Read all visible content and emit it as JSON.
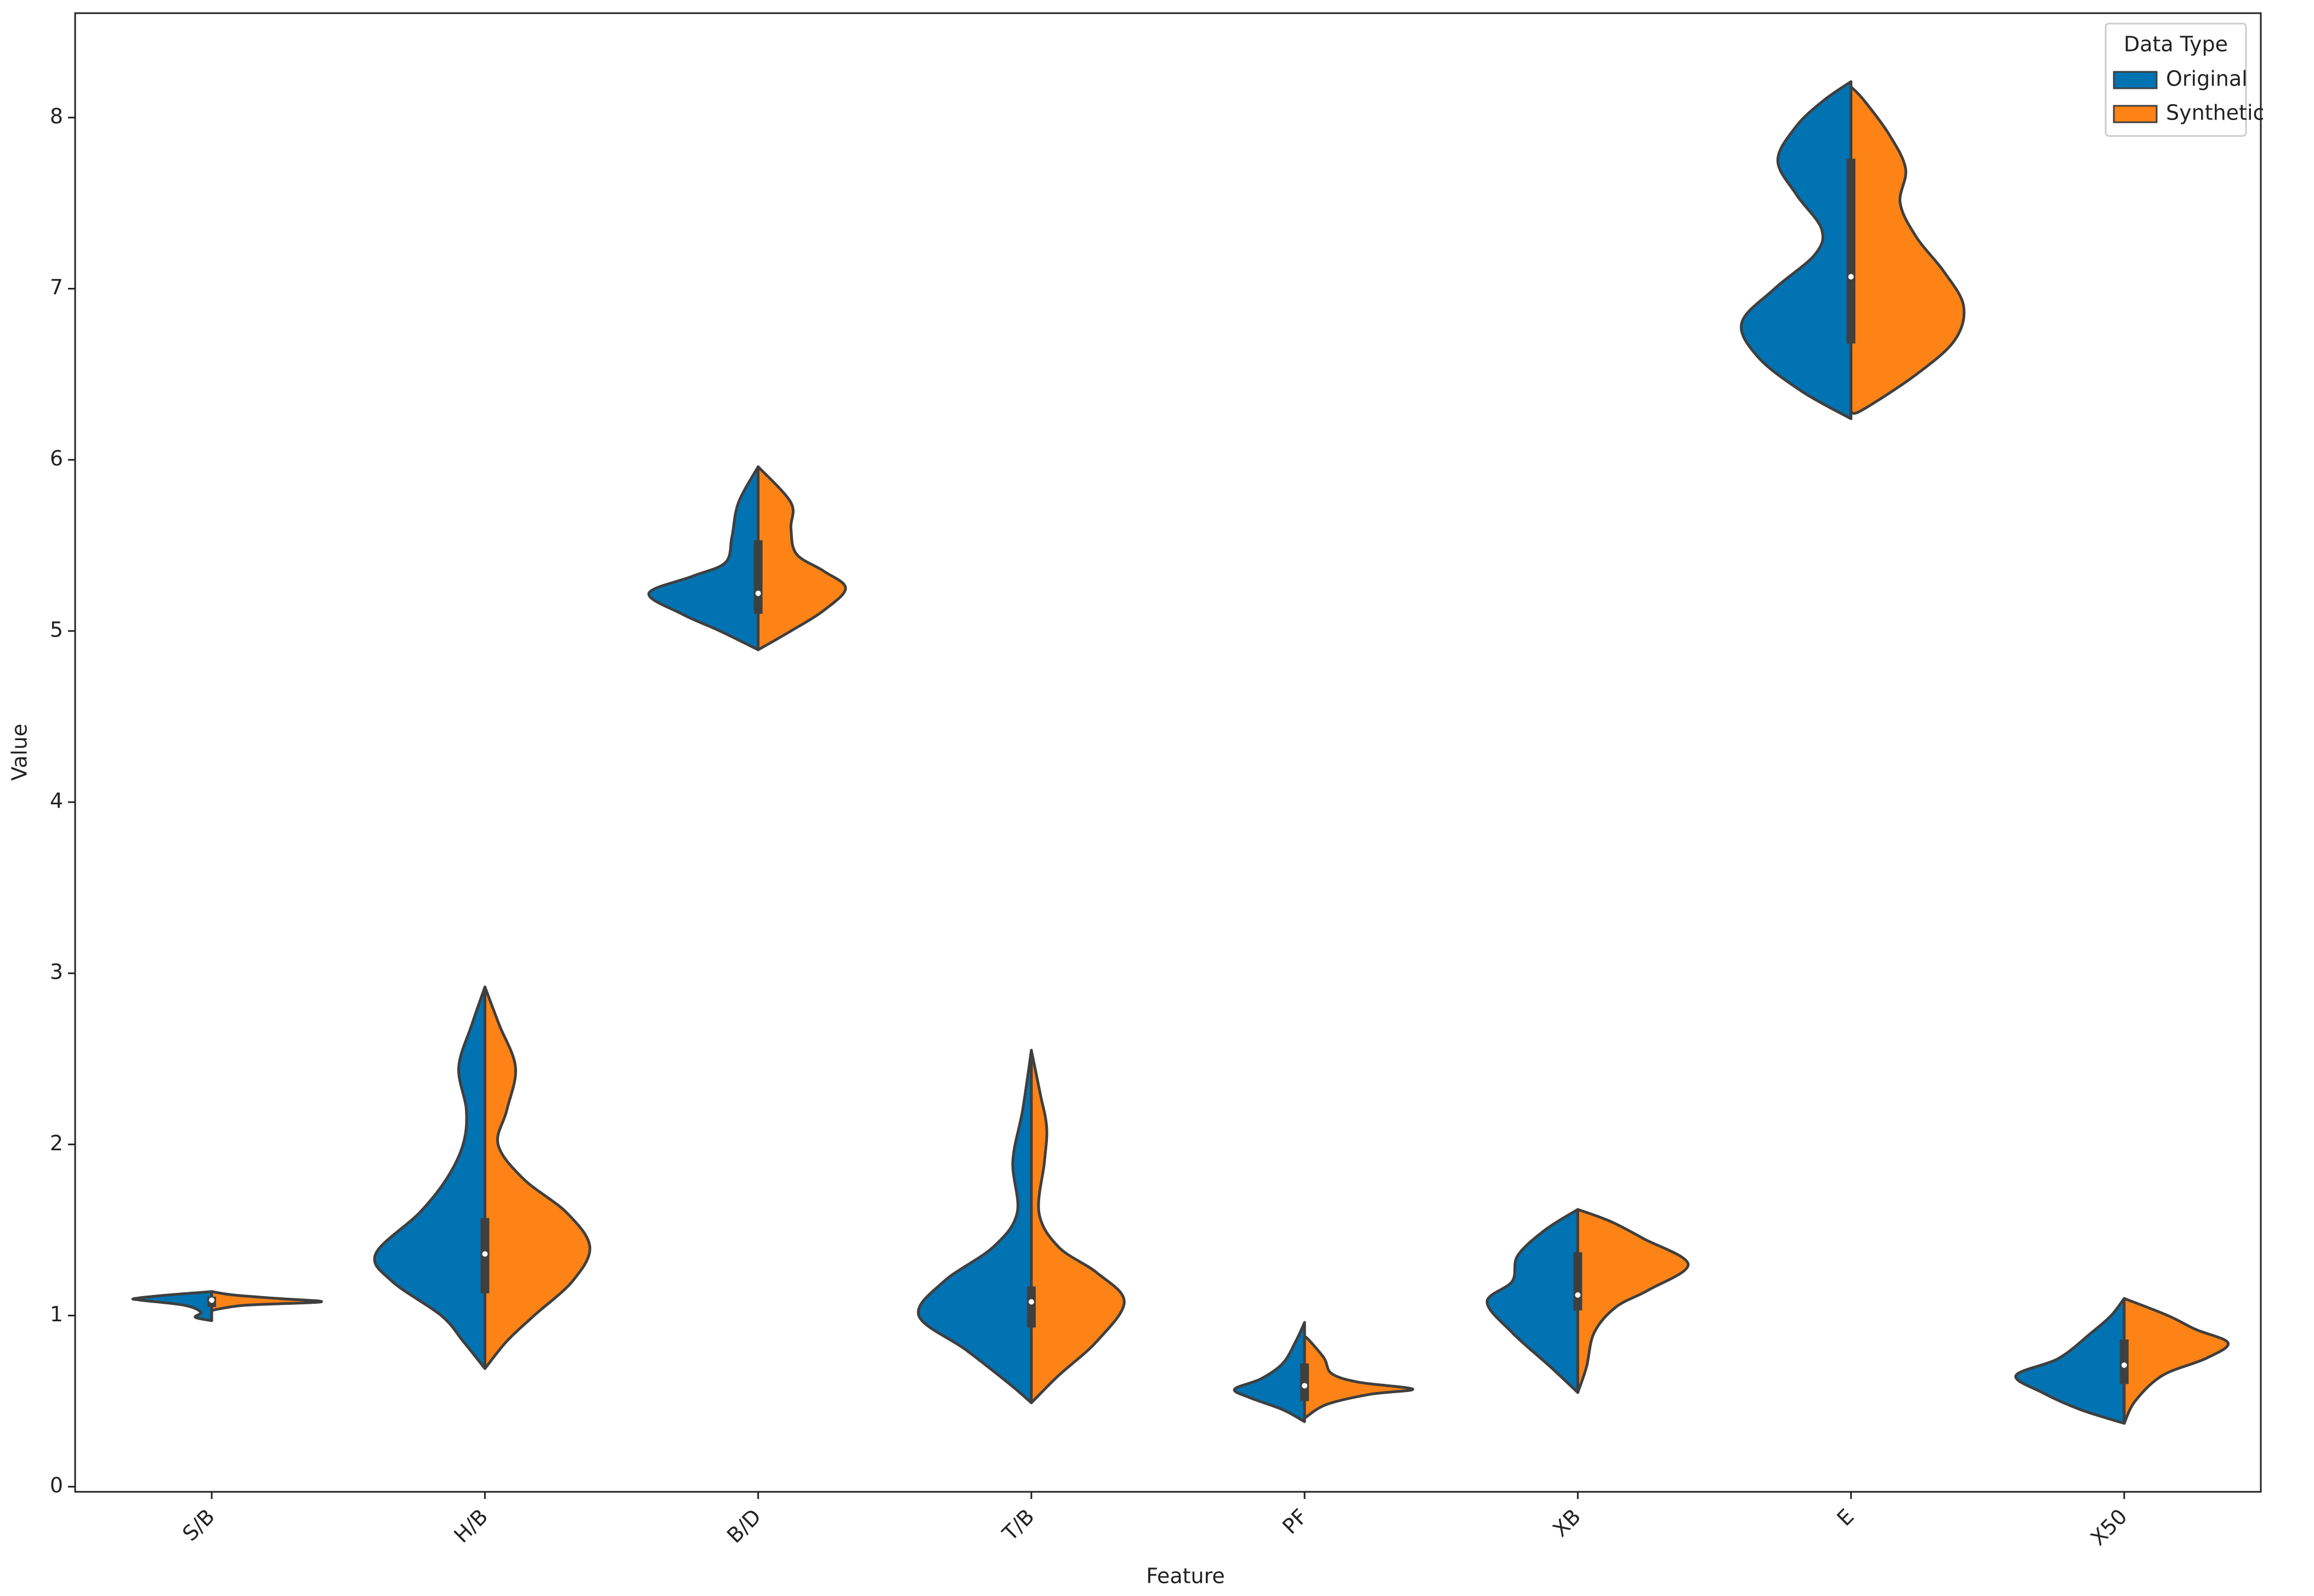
{
  "chart_data": {
    "type": "violin",
    "xlabel": "Feature",
    "ylabel": "Value",
    "categories": [
      "S/B",
      "H/B",
      "B/D",
      "T/B",
      "PF",
      "XB",
      "E",
      "X50"
    ],
    "ylim": [
      -0.03,
      8.61
    ],
    "yticks": [
      0,
      1,
      2,
      3,
      4,
      5,
      6,
      7,
      8
    ],
    "legend": {
      "title": "Data Type",
      "position": "upper right"
    },
    "series": [
      {
        "name": "Original",
        "color": "#0173b2",
        "side": "left",
        "violins": [
          {
            "y": [
              0.97,
              0.99,
              1.02,
              1.06,
              1.09,
              1.1,
              1.12,
              1.14
            ],
            "width": [
              0,
              0.15,
              0.1,
              0.25,
              0.65,
              0.7,
              0.4,
              0
            ]
          },
          {
            "y": [
              0.69,
              0.85,
              1.0,
              1.2,
              1.36,
              1.6,
              1.8,
              2.0,
              2.2,
              2.45,
              2.7,
              2.92
            ],
            "width": [
              0,
              0.2,
              0.4,
              0.85,
              1.0,
              0.6,
              0.35,
              0.2,
              0.17,
              0.24,
              0.12,
              0
            ]
          },
          {
            "y": [
              4.89,
              5.0,
              5.1,
              5.22,
              5.32,
              5.4,
              5.55,
              5.75,
              5.96
            ],
            "width": [
              0,
              0.35,
              0.7,
              1.0,
              0.6,
              0.3,
              0.24,
              0.18,
              0
            ]
          },
          {
            "y": [
              0.49,
              0.6,
              0.8,
              1.0,
              1.2,
              1.4,
              1.6,
              1.9,
              2.2,
              2.55
            ],
            "width": [
              0,
              0.2,
              0.6,
              1.03,
              0.8,
              0.35,
              0.13,
              0.17,
              0.08,
              0
            ]
          },
          {
            "y": [
              0.38,
              0.45,
              0.52,
              0.57,
              0.63,
              0.72,
              0.85,
              0.96
            ],
            "width": [
              0,
              0.2,
              0.5,
              0.64,
              0.4,
              0.2,
              0.08,
              0
            ]
          },
          {
            "y": [
              0.55,
              0.7,
              0.9,
              1.08,
              1.2,
              1.35,
              1.5,
              1.62
            ],
            "width": [
              0,
              0.25,
              0.6,
              0.83,
              0.6,
              0.55,
              0.3,
              0
            ]
          },
          {
            "y": [
              6.24,
              6.4,
              6.6,
              6.8,
              7.0,
              7.2,
              7.35,
              7.55,
              7.75,
              7.95,
              8.1,
              8.21
            ],
            "width": [
              0,
              0.45,
              0.85,
              1.0,
              0.7,
              0.33,
              0.27,
              0.5,
              0.67,
              0.5,
              0.25,
              0
            ]
          },
          {
            "y": [
              0.37,
              0.45,
              0.55,
              0.65,
              0.75,
              0.9,
              1.0,
              1.1
            ],
            "width": [
              0,
              0.4,
              0.75,
              0.99,
              0.6,
              0.3,
              0.12,
              0
            ]
          }
        ]
      },
      {
        "name": "Synthetic",
        "color": "#fd8316",
        "side": "right",
        "violins": [
          {
            "y": [
              1.03,
              1.06,
              1.08,
              1.1,
              1.12,
              1.14
            ],
            "width": [
              0,
              0.3,
              1.0,
              0.6,
              0.2,
              0
            ]
          },
          {
            "y": [
              0.69,
              0.85,
              1.0,
              1.2,
              1.4,
              1.6,
              1.8,
              2.0,
              2.2,
              2.45,
              2.7,
              2.92
            ],
            "width": [
              0,
              0.2,
              0.45,
              0.8,
              0.96,
              0.75,
              0.35,
              0.12,
              0.2,
              0.28,
              0.13,
              0
            ]
          },
          {
            "y": [
              4.89,
              5.0,
              5.12,
              5.25,
              5.35,
              5.45,
              5.6,
              5.75,
              5.96
            ],
            "width": [
              0,
              0.3,
              0.6,
              0.8,
              0.6,
              0.35,
              0.3,
              0.3,
              0
            ]
          },
          {
            "y": [
              0.49,
              0.65,
              0.85,
              1.08,
              1.25,
              1.4,
              1.6,
              1.9,
              2.1,
              2.3,
              2.55
            ],
            "width": [
              0,
              0.25,
              0.6,
              0.85,
              0.6,
              0.25,
              0.07,
              0.12,
              0.14,
              0.08,
              0
            ]
          },
          {
            "y": [
              0.4,
              0.48,
              0.54,
              0.57,
              0.61,
              0.66,
              0.75,
              0.85,
              0.88
            ],
            "width": [
              0,
              0.2,
              0.6,
              0.99,
              0.5,
              0.25,
              0.18,
              0.05,
              0
            ]
          },
          {
            "y": [
              0.55,
              0.7,
              0.9,
              1.05,
              1.15,
              1.3,
              1.45,
              1.55,
              1.62
            ],
            "width": [
              0,
              0.08,
              0.15,
              0.35,
              0.65,
              1.01,
              0.6,
              0.3,
              0
            ]
          },
          {
            "y": [
              6.28,
              6.29,
              6.5,
              6.7,
              6.9,
              7.1,
              7.3,
              7.5,
              7.7,
              7.9,
              8.1,
              8.18
            ],
            "width": [
              0,
              0.1,
              0.6,
              0.95,
              1.03,
              0.85,
              0.6,
              0.45,
              0.5,
              0.35,
              0.12,
              0
            ]
          },
          {
            "y": [
              0.37,
              0.5,
              0.65,
              0.75,
              0.84,
              0.92,
              1.0,
              1.1
            ],
            "width": [
              0,
              0.1,
              0.35,
              0.75,
              0.95,
              0.65,
              0.4,
              0
            ]
          }
        ]
      }
    ],
    "box": [
      {
        "q1": 1.05,
        "median": 1.09,
        "q3": 1.11
      },
      {
        "q1": 1.13,
        "median": 1.36,
        "q3": 1.57
      },
      {
        "q1": 5.1,
        "median": 5.22,
        "q3": 5.53
      },
      {
        "q1": 0.93,
        "median": 1.08,
        "q3": 1.17
      },
      {
        "q1": 0.5,
        "median": 0.59,
        "q3": 0.72
      },
      {
        "q1": 1.03,
        "median": 1.12,
        "q3": 1.37
      },
      {
        "q1": 6.68,
        "median": 7.07,
        "q3": 7.76
      },
      {
        "q1": 0.6,
        "median": 0.71,
        "q3": 0.86
      }
    ]
  }
}
